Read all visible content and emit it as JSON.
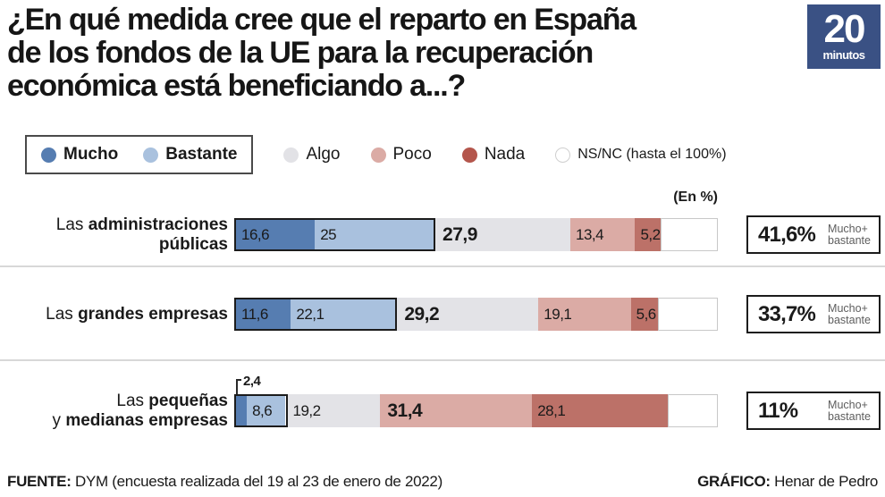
{
  "title": {
    "line1": "¿En qué medida cree que el reparto en España",
    "line2": "de los fondos de la UE para la recuperación",
    "line3": "económica está beneficiando a...?"
  },
  "logo": {
    "number": "20",
    "word": "minutos",
    "bg_color": "#3a5184"
  },
  "legend": {
    "boxed_items": [
      {
        "label": "Mucho",
        "color": "#567db1"
      },
      {
        "label": "Bastante",
        "color": "#a9c1de"
      }
    ],
    "items": [
      {
        "label": "Algo",
        "color": "#e2e2e6"
      },
      {
        "label": "Poco",
        "color": "#dbaba5"
      },
      {
        "label": "Nada",
        "color": "#b4564c"
      },
      {
        "label": "NS/NC (hasta el 100%)",
        "color": "#ffffff"
      }
    ]
  },
  "unit_note": "(En %)",
  "colors": {
    "mucho": "#567db1",
    "bastante": "#a9c1de",
    "algo": "#e3e3e7",
    "poco": "#dbaba5",
    "nada": "#bc7168",
    "nsnc": "#ffffff"
  },
  "chart_data": {
    "type": "bar",
    "subtype": "horizontal-stacked-percentage",
    "title": "¿En qué medida cree que el reparto en España de los fondos de la UE para la recuperación económica está beneficiando a...?",
    "unit": "(En %)",
    "xlim": [
      0,
      100
    ],
    "legend_position": "top",
    "categories": [
      "Las administraciones públicas",
      "Las grandes empresas",
      "Las pequeñas y medianas empresas"
    ],
    "series": [
      {
        "name": "Mucho",
        "values": [
          16.6,
          11.6,
          2.4
        ]
      },
      {
        "name": "Bastante",
        "values": [
          25,
          22.1,
          8.6
        ]
      },
      {
        "name": "Algo",
        "values": [
          27.9,
          29.2,
          19.2
        ]
      },
      {
        "name": "Poco",
        "values": [
          13.4,
          19.1,
          31.4
        ]
      },
      {
        "name": "Nada",
        "values": [
          5.2,
          5.6,
          28.1
        ]
      },
      {
        "name": "NS/NC (hasta el 100%)",
        "values": [
          11.9,
          12.4,
          10.3
        ]
      }
    ],
    "summary_mucho_mas_bastante": [
      "41,6%",
      "33,7%",
      "11%"
    ]
  },
  "rows": [
    {
      "label_lines": [
        {
          "normal": "Las ",
          "bold": "administraciones"
        },
        {
          "normal": "",
          "bold": "públicas"
        }
      ],
      "segments": [
        {
          "key": "mucho",
          "pct": 16.6,
          "label": "16,6"
        },
        {
          "key": "bastante",
          "pct": 25,
          "label": "25"
        },
        {
          "key": "algo",
          "pct": 27.9,
          "label": "27,9",
          "emphasis": true
        },
        {
          "key": "poco",
          "pct": 13.4,
          "label": "13,4"
        },
        {
          "key": "nada",
          "pct": 5.2,
          "label": "5,2"
        },
        {
          "key": "nsnc",
          "pct": 11.9,
          "label": ""
        }
      ],
      "summary": {
        "pct": "41,6%",
        "note_lines": [
          "Mucho+",
          "bastante"
        ]
      }
    },
    {
      "label_lines": [
        {
          "normal": "Las ",
          "bold": "grandes empresas"
        },
        {
          "normal": "",
          "bold": ""
        }
      ],
      "segments": [
        {
          "key": "mucho",
          "pct": 11.6,
          "label": "11,6"
        },
        {
          "key": "bastante",
          "pct": 22.1,
          "label": "22,1"
        },
        {
          "key": "algo",
          "pct": 29.2,
          "label": "29,2",
          "emphasis": true
        },
        {
          "key": "poco",
          "pct": 19.1,
          "label": "19,1"
        },
        {
          "key": "nada",
          "pct": 5.6,
          "label": "5,6"
        },
        {
          "key": "nsnc",
          "pct": 12.4,
          "label": ""
        }
      ],
      "summary": {
        "pct": "33,7%",
        "note_lines": [
          "Mucho+",
          "bastante"
        ]
      }
    },
    {
      "label_lines": [
        {
          "normal": "Las ",
          "bold": "pequeñas"
        },
        {
          "normal": "y ",
          "bold": "medianas empresas"
        }
      ],
      "segments": [
        {
          "key": "mucho",
          "pct": 2.4,
          "label": "2,4",
          "callout": true
        },
        {
          "key": "bastante",
          "pct": 8.6,
          "label": "8,6"
        },
        {
          "key": "algo",
          "pct": 19.2,
          "label": "19,2"
        },
        {
          "key": "poco",
          "pct": 31.4,
          "label": "31,4",
          "emphasis": true
        },
        {
          "key": "nada",
          "pct": 28.1,
          "label": "28,1"
        },
        {
          "key": "nsnc",
          "pct": 10.3,
          "label": ""
        }
      ],
      "summary": {
        "pct": "11%",
        "note_lines": [
          "Mucho+",
          "bastante"
        ]
      }
    }
  ],
  "footer": {
    "source_label": "FUENTE:",
    "source_rest": " DYM (encuesta realizada del 19 al 23 de enero de 2022)",
    "credit_label": "GRÁFICO:",
    "credit_rest": " Henar de Pedro"
  }
}
